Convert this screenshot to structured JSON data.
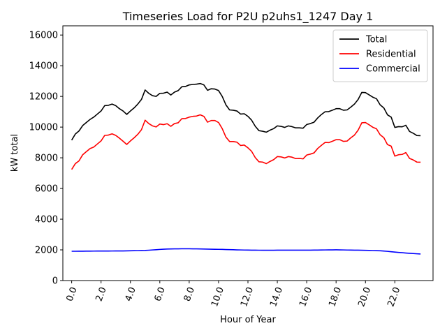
{
  "chart_data": {
    "type": "line",
    "title": "Timeseries Load for P2U p2uhs1_1247  Day 1",
    "xlabel": "Hour of Year",
    "ylabel": "kW total",
    "xlim": [
      -0.6,
      24.6
    ],
    "ylim": [
      0,
      16600
    ],
    "x_ticks": [
      0,
      2,
      4,
      6,
      8,
      10,
      12,
      14,
      16,
      18,
      20,
      22
    ],
    "x_tick_labels": [
      "0.0",
      "2.0",
      "4.0",
      "6.0",
      "8.0",
      "10.0",
      "12.0",
      "14.0",
      "16.0",
      "18.0",
      "20.0",
      "22.0"
    ],
    "y_ticks": [
      0,
      2000,
      4000,
      6000,
      8000,
      10000,
      12000,
      14000,
      16000
    ],
    "y_tick_labels": [
      "0",
      "2000",
      "4000",
      "6000",
      "8000",
      "10000",
      "12000",
      "14000",
      "16000"
    ],
    "legend_position": "top-right",
    "x_step": 0.25,
    "series": [
      {
        "name": "Total",
        "color": "#000000",
        "values": [
          9150,
          9550,
          9750,
          10100,
          10300,
          10500,
          10650,
          10850,
          11050,
          11400,
          11420,
          11500,
          11400,
          11200,
          11050,
          10830,
          11050,
          11250,
          11500,
          11800,
          12420,
          12200,
          12050,
          12000,
          12200,
          12210,
          12280,
          12090,
          12280,
          12380,
          12630,
          12650,
          12750,
          12780,
          12800,
          12840,
          12750,
          12400,
          12500,
          12480,
          12380,
          12000,
          11450,
          11120,
          11100,
          11050,
          10850,
          10870,
          10700,
          10450,
          10050,
          9770,
          9730,
          9670,
          9800,
          9900,
          10080,
          10050,
          9980,
          10080,
          10030,
          9950,
          9950,
          9930,
          10170,
          10230,
          10320,
          10600,
          10820,
          11000,
          11010,
          11100,
          11200,
          11200,
          11100,
          11120,
          11300,
          11500,
          11800,
          12260,
          12250,
          12100,
          11950,
          11850,
          11450,
          11250,
          10800,
          10650,
          9980,
          10030,
          10020,
          10120,
          9720,
          9600,
          9450,
          9440
        ]
      },
      {
        "name": "Residential",
        "color": "#ff0000",
        "values": [
          7240,
          7620,
          7800,
          8200,
          8400,
          8600,
          8700,
          8900,
          9100,
          9460,
          9480,
          9560,
          9460,
          9280,
          9080,
          8870,
          9100,
          9300,
          9530,
          9830,
          10450,
          10230,
          10080,
          10010,
          10200,
          10160,
          10220,
          10050,
          10230,
          10280,
          10550,
          10560,
          10650,
          10700,
          10720,
          10800,
          10700,
          10320,
          10430,
          10430,
          10300,
          9900,
          9350,
          9060,
          9060,
          9020,
          8800,
          8830,
          8650,
          8420,
          8010,
          7740,
          7720,
          7620,
          7760,
          7880,
          8080,
          8060,
          7990,
          8080,
          8040,
          7950,
          7960,
          7930,
          8180,
          8240,
          8320,
          8610,
          8810,
          9000,
          8990,
          9080,
          9180,
          9180,
          9070,
          9090,
          9300,
          9480,
          9800,
          10280,
          10300,
          10150,
          9990,
          9890,
          9500,
          9310,
          8860,
          8760,
          8110,
          8200,
          8220,
          8340,
          7960,
          7860,
          7720,
          7710
        ]
      },
      {
        "name": "Commercial",
        "color": "#0000ff",
        "values": [
          1910,
          1910,
          1912,
          1915,
          1918,
          1920,
          1922,
          1925,
          1925,
          1925,
          1926,
          1927,
          1928,
          1930,
          1932,
          1935,
          1940,
          1945,
          1950,
          1958,
          1965,
          1978,
          1995,
          2010,
          2030,
          2045,
          2055,
          2060,
          2065,
          2068,
          2070,
          2070,
          2070,
          2068,
          2065,
          2060,
          2055,
          2050,
          2045,
          2040,
          2035,
          2030,
          2022,
          2015,
          2008,
          2000,
          1995,
          1990,
          1987,
          1983,
          1980,
          1978,
          1975,
          1975,
          1975,
          1977,
          1980,
          1982,
          1983,
          1983,
          1982,
          1980,
          1980,
          1980,
          1980,
          1982,
          1985,
          1988,
          1992,
          1995,
          1998,
          2000,
          2002,
          2000,
          1995,
          1990,
          1985,
          1982,
          1980,
          1975,
          1970,
          1962,
          1955,
          1947,
          1940,
          1925,
          1905,
          1880,
          1855,
          1835,
          1815,
          1795,
          1778,
          1762,
          1745,
          1730
        ]
      }
    ]
  }
}
